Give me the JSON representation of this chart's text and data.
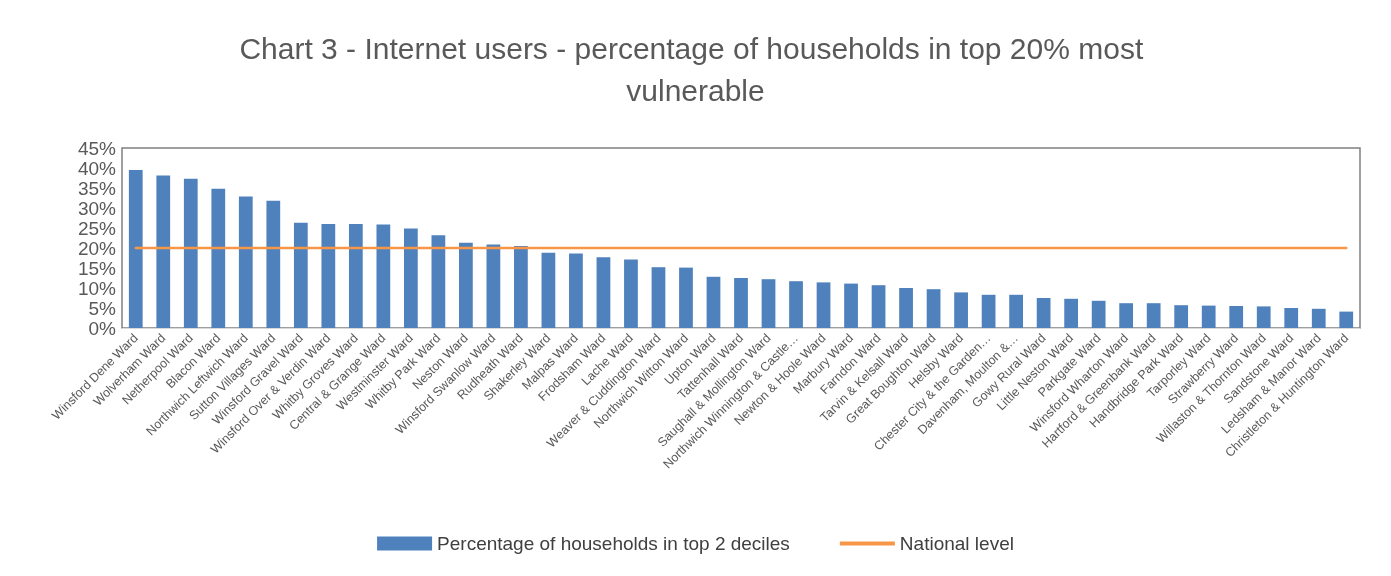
{
  "chart_data": {
    "type": "bar",
    "title": "Chart 3 - Internet users - percentage of households in top 20% most vulnerable",
    "categories": [
      "Winsford Dene Ward",
      "Wolverham Ward",
      "Netherpool Ward",
      "Blacon Ward",
      "Northwich Leftwich Ward",
      "Sutton Villages Ward",
      "Winsford Gravel Ward",
      "Winsford Over & Verdin Ward",
      "Whitby Groves Ward",
      "Central & Grange Ward",
      "Westminster Ward",
      "Whitby Park Ward",
      "Neston Ward",
      "Winsford Swanlow Ward",
      "Rudheath Ward",
      "Shakerley Ward",
      "Malpas Ward",
      "Frodsham Ward",
      "Lache Ward",
      "Weaver & Cuddington Ward",
      "Northwich Witton Ward",
      "Upton Ward",
      "Tattenhall Ward",
      "Saughall & Mollington Ward",
      "Northwich Winnington & Castle…",
      "Newton & Hoole Ward",
      "Marbury Ward",
      "Farndon Ward",
      "Tarvin & Kelsall Ward",
      "Great Boughton Ward",
      "Helsby Ward",
      "Chester City & the Garden…",
      "Davenham, Moulton &…",
      "Gowy Rural Ward",
      "Little Neston Ward",
      "Parkgate Ward",
      "Winsford Wharton Ward",
      "Hartford & Greenbank Ward",
      "Handbridge Park Ward",
      "Tarporley Ward",
      "Strawberry Ward",
      "Willaston & Thornton Ward",
      "Sandstone Ward",
      "Ledsham & Manor Ward",
      "Christleton & Huntington Ward"
    ],
    "series": [
      {
        "name": "Percentage of households in top 2 deciles",
        "color": "#4f81bd",
        "values": [
          39.5,
          38.1,
          37.3,
          34.8,
          32.9,
          31.8,
          26.3,
          26.0,
          26.0,
          25.9,
          24.9,
          23.2,
          21.3,
          20.9,
          20.5,
          18.8,
          18.6,
          17.7,
          17.1,
          15.2,
          15.1,
          12.8,
          12.5,
          12.2,
          11.7,
          11.4,
          11.1,
          10.7,
          10.0,
          9.7,
          8.9,
          8.3,
          8.3,
          7.5,
          7.3,
          6.8,
          6.2,
          6.2,
          5.7,
          5.6,
          5.5,
          5.4,
          5.0,
          4.8,
          4.1
        ]
      },
      {
        "name": "National level",
        "type": "line",
        "color": "#f79646",
        "values": [
          20,
          20,
          20,
          20,
          20,
          20,
          20,
          20,
          20,
          20,
          20,
          20,
          20,
          20,
          20,
          20,
          20,
          20,
          20,
          20,
          20,
          20,
          20,
          20,
          20,
          20,
          20,
          20,
          20,
          20,
          20,
          20,
          20,
          20,
          20,
          20,
          20,
          20,
          20,
          20,
          20,
          20,
          20,
          20,
          20
        ]
      }
    ],
    "ylim": [
      0,
      45
    ],
    "yticks": [
      {
        "value": 0,
        "label": "0%"
      },
      {
        "value": 5,
        "label": "5%"
      },
      {
        "value": 10,
        "label": "10%"
      },
      {
        "value": 15,
        "label": "15%"
      },
      {
        "value": 20,
        "label": "20%"
      },
      {
        "value": 25,
        "label": "25%"
      },
      {
        "value": 30,
        "label": "30%"
      },
      {
        "value": 35,
        "label": "35%"
      },
      {
        "value": 40,
        "label": "40%"
      },
      {
        "value": 45,
        "label": "45%"
      }
    ],
    "grid": false,
    "legend": "bottom",
    "marker": "none",
    "line_style": "solid"
  }
}
